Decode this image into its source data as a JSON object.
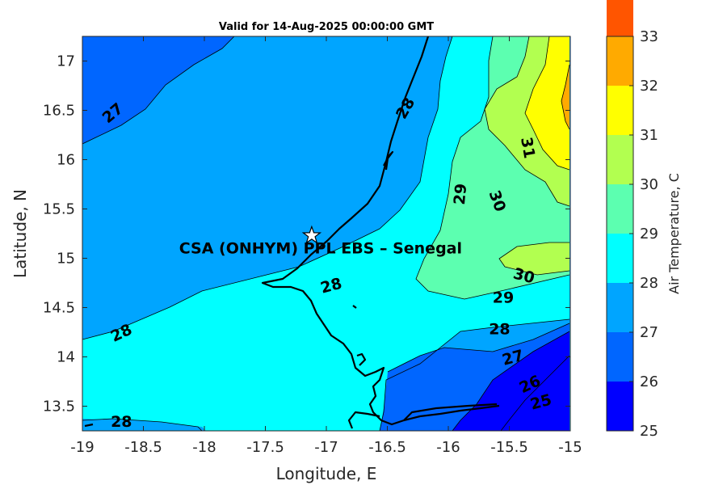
{
  "chart_data": {
    "type": "heatmap",
    "title": "Valid for 14-Aug-2025 00:00:00 GMT",
    "xlabel": "Longitude, E",
    "ylabel": "Latitude, N",
    "xlim": [
      -19,
      -15
    ],
    "ylim": [
      13.25,
      17.25
    ],
    "xticks": [
      -19,
      -18.5,
      -18,
      -17.5,
      -17,
      -16.5,
      -16,
      -15.5,
      -15
    ],
    "xtick_labels": [
      "-19",
      "-18.5",
      "-18",
      "-17.5",
      "-17",
      "-16.5",
      "-16",
      "-15.5",
      "-15"
    ],
    "yticks": [
      13.5,
      14,
      14.5,
      15,
      15.5,
      16,
      16.5,
      17
    ],
    "ytick_labels": [
      "13.5",
      "14",
      "14.5",
      "15",
      "15.5",
      "16",
      "16.5",
      "17"
    ],
    "colorbar": {
      "label": "Air Temperature, C",
      "range": [
        25,
        33
      ],
      "ticks": [
        25,
        26,
        27,
        28,
        29,
        30,
        31,
        32,
        33
      ],
      "tick_labels": [
        "25",
        "26",
        "27",
        "28",
        "29",
        "30",
        "31",
        "32",
        "33"
      ],
      "colors": [
        "#0000ff",
        "#0066ff",
        "#00a5ff",
        "#00ffff",
        "#5cffb0",
        "#b2ff50",
        "#ffff00",
        "#ffaa00",
        "#ff5500"
      ]
    },
    "contour_labels": [
      {
        "text": "27",
        "lon": -18.75,
        "lat": 16.47,
        "angle": -40
      },
      {
        "text": "28",
        "lon": -16.35,
        "lat": 16.52,
        "angle": -60
      },
      {
        "text": "31",
        "lon": -15.35,
        "lat": 16.12,
        "angle": 80
      },
      {
        "text": "29",
        "lon": -15.9,
        "lat": 15.65,
        "angle": -85
      },
      {
        "text": "30",
        "lon": -15.6,
        "lat": 15.58,
        "angle": 70
      },
      {
        "text": "28",
        "lon": -16.96,
        "lat": 14.72,
        "angle": -15
      },
      {
        "text": "30",
        "lon": -15.38,
        "lat": 14.82,
        "angle": 15
      },
      {
        "text": "29",
        "lon": -15.55,
        "lat": 14.6,
        "angle": 0
      },
      {
        "text": "28",
        "lon": -15.58,
        "lat": 14.28,
        "angle": 0
      },
      {
        "text": "28",
        "lon": -18.68,
        "lat": 14.24,
        "angle": -25
      },
      {
        "text": "27",
        "lon": -15.47,
        "lat": 13.99,
        "angle": -15
      },
      {
        "text": "26",
        "lon": -15.33,
        "lat": 13.72,
        "angle": -25
      },
      {
        "text": "25",
        "lon": -15.24,
        "lat": 13.54,
        "angle": -15
      },
      {
        "text": "28",
        "lon": -18.68,
        "lat": 13.34,
        "angle": 0
      }
    ],
    "site": {
      "name": "CSA (ONHYM) PPL EBS  – Senegal",
      "lon": -17.12,
      "lat": 15.23
    },
    "grid": false
  }
}
